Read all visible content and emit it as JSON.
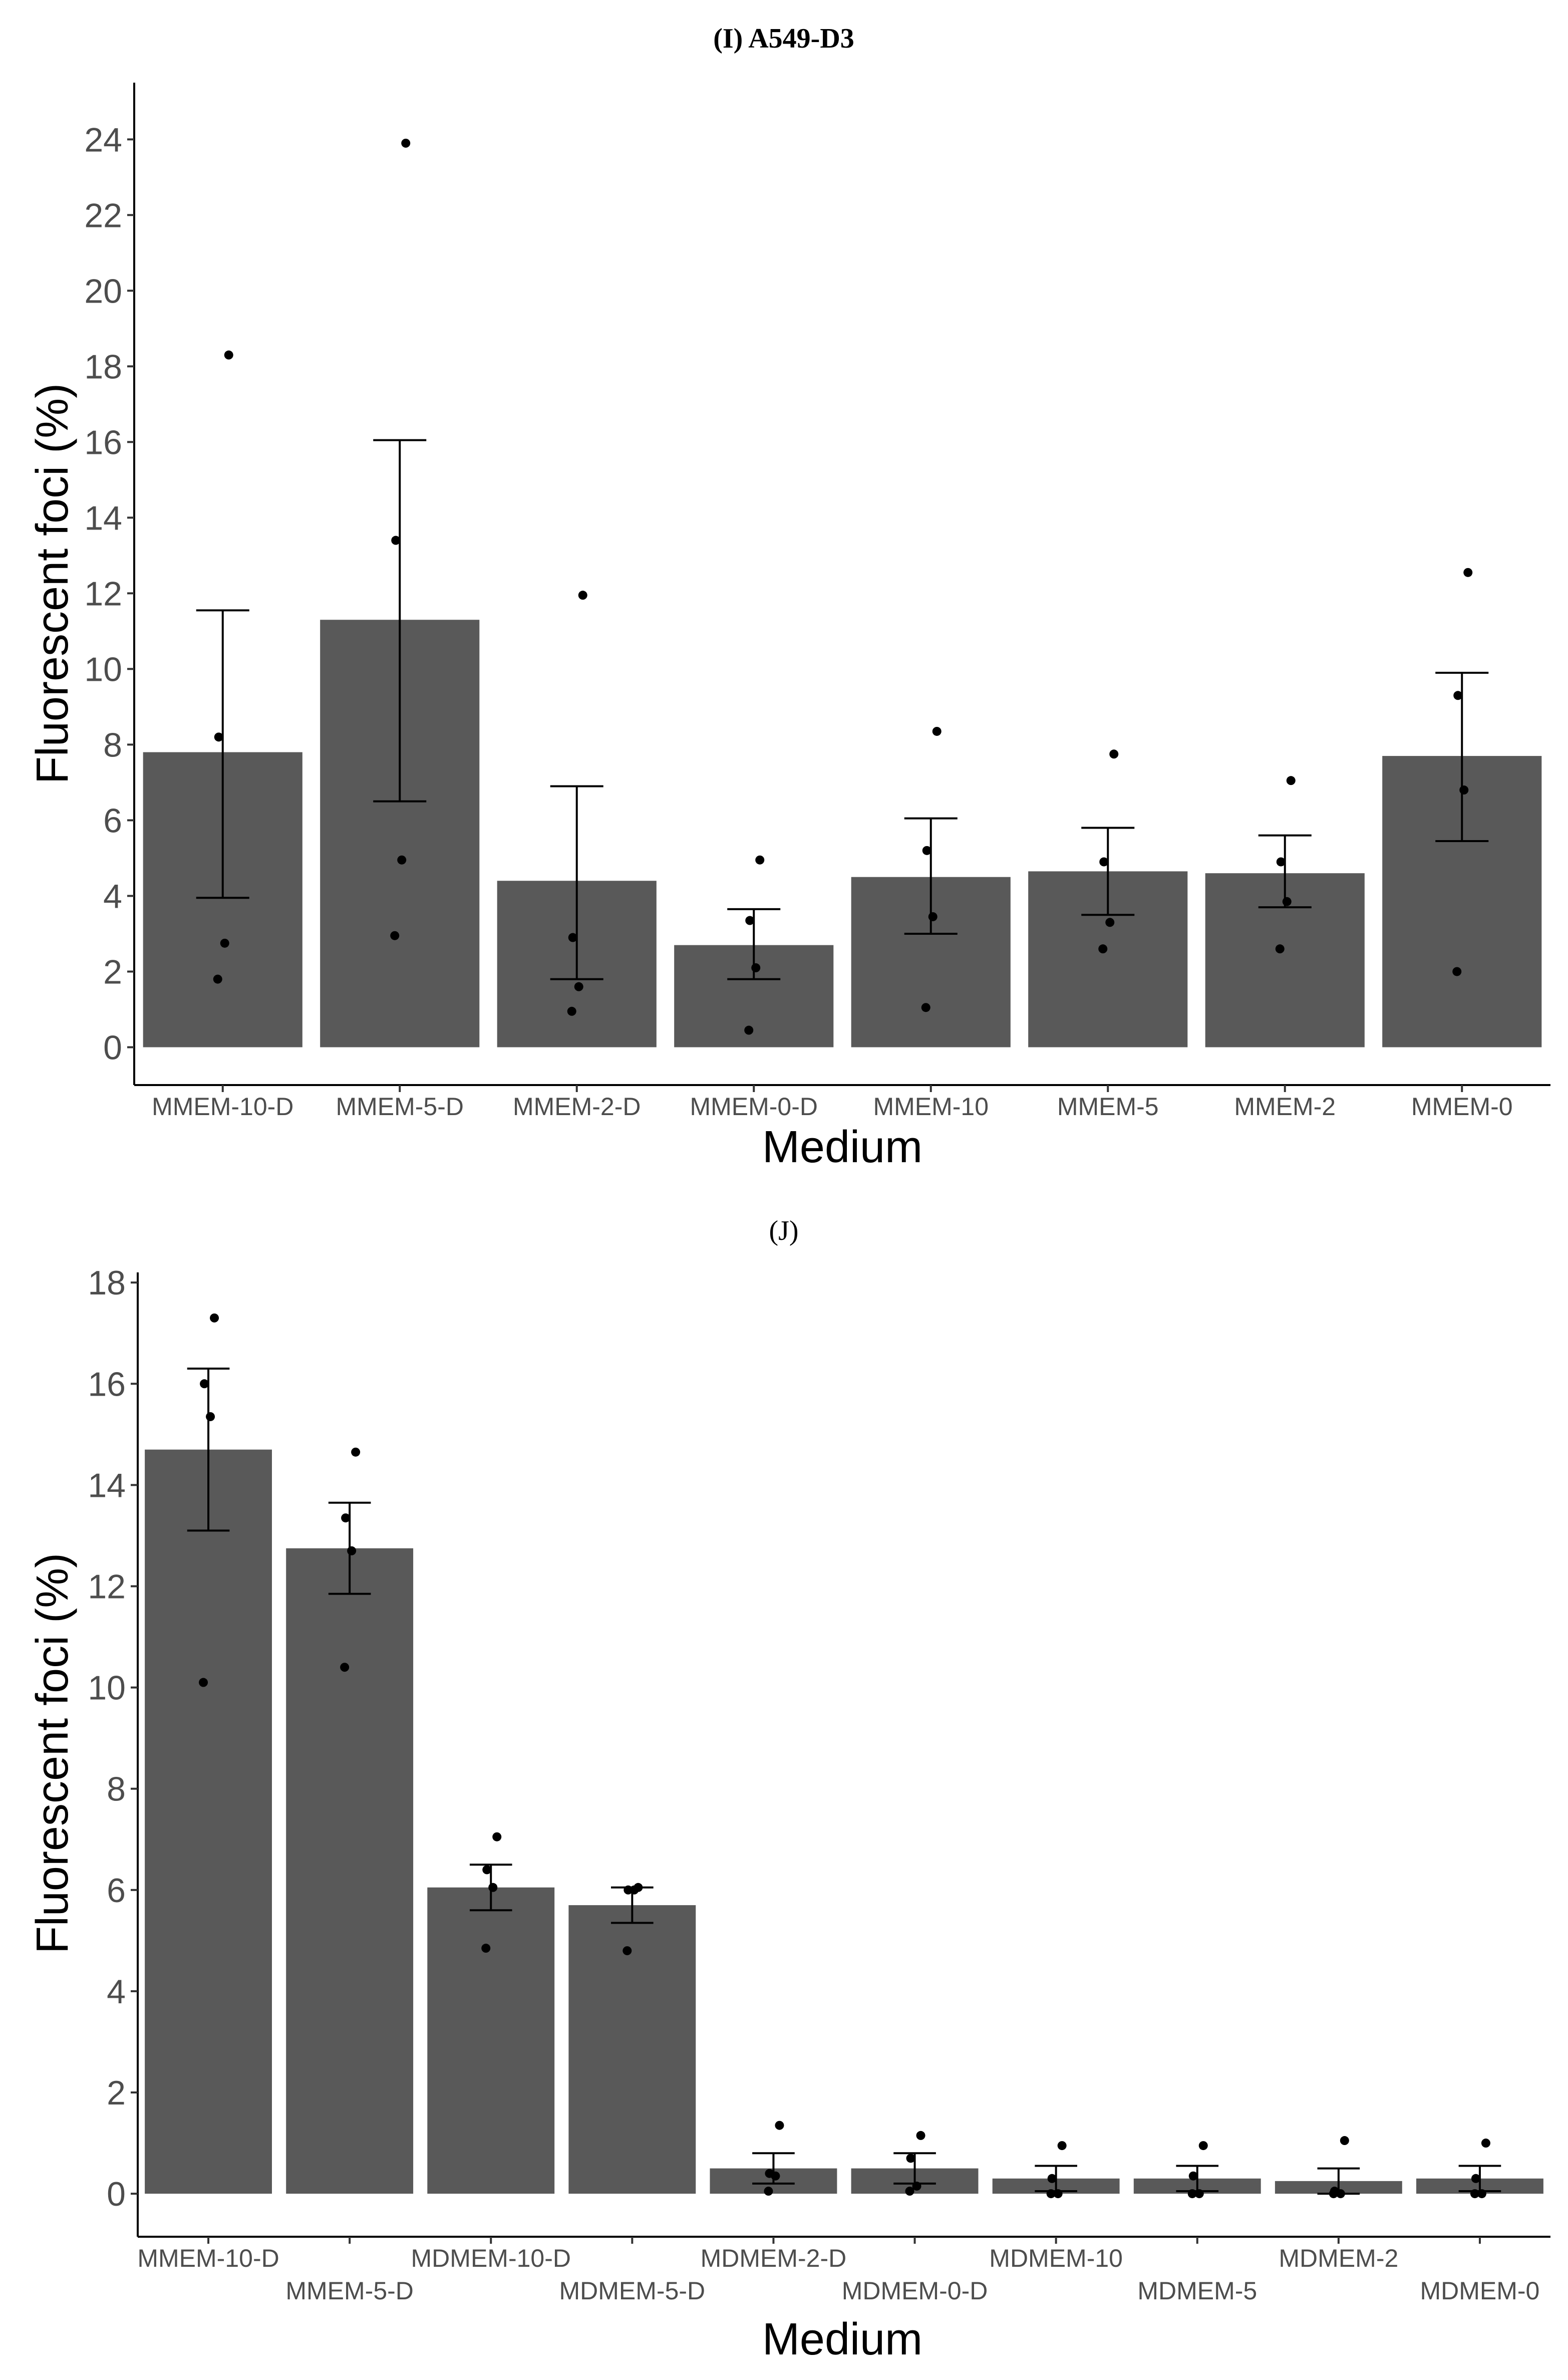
{
  "chart_data": [
    {
      "type": "bar",
      "panel_label": "I",
      "title": "A549-D3",
      "xlabel": "Medium",
      "ylabel": "Fluorescent foci (%)",
      "ylim": [
        -1,
        25.5
      ],
      "yticks": [
        0,
        2,
        4,
        6,
        8,
        10,
        12,
        14,
        16,
        18,
        20,
        22,
        24
      ],
      "categories": [
        "MMEM-10-D",
        "MMEM-5-D",
        "MMEM-2-D",
        "MMEM-0-D",
        "MMEM-10",
        "MMEM-5",
        "MMEM-2",
        "MMEM-0"
      ],
      "values": [
        7.8,
        11.3,
        4.4,
        2.7,
        4.5,
        4.65,
        4.6,
        7.7
      ],
      "error_low": [
        3.95,
        6.5,
        1.8,
        1.8,
        3.0,
        3.5,
        3.7,
        5.45
      ],
      "error_high": [
        11.55,
        16.05,
        6.9,
        3.65,
        6.05,
        5.8,
        5.6,
        9.9
      ],
      "points": [
        [
          18.3,
          8.2,
          2.75,
          1.8
        ],
        [
          23.9,
          13.4,
          4.95,
          2.95
        ],
        [
          11.95,
          2.9,
          1.6,
          0.95
        ],
        [
          4.95,
          3.35,
          2.1,
          0.45
        ],
        [
          8.35,
          5.2,
          3.45,
          1.05
        ],
        [
          7.75,
          4.9,
          3.3,
          2.6
        ],
        [
          7.05,
          4.9,
          3.85,
          2.6
        ],
        [
          12.55,
          9.3,
          6.8,
          2.0
        ]
      ],
      "xlabel_layout": "single"
    },
    {
      "type": "bar",
      "panel_label": "J",
      "title": "",
      "xlabel": "Medium",
      "ylabel": "Fluorescent foci (%)",
      "ylim": [
        -0.85,
        18.2
      ],
      "yticks": [
        0,
        2,
        4,
        6,
        8,
        10,
        12,
        14,
        16,
        18
      ],
      "categories": [
        "MMEM-10-D",
        "MMEM-5-D",
        "MDMEM-10-D",
        "MDMEM-5-D",
        "MDMEM-2-D",
        "MDMEM-0-D",
        "MDMEM-10",
        "MDMEM-5",
        "MDMEM-2",
        "MDMEM-0"
      ],
      "values": [
        14.7,
        12.75,
        6.05,
        5.7,
        0.5,
        0.5,
        0.3,
        0.3,
        0.25,
        0.3
      ],
      "error_low": [
        13.1,
        11.85,
        5.6,
        5.35,
        0.2,
        0.2,
        0.05,
        0.05,
        0.0,
        0.05
      ],
      "error_high": [
        16.3,
        13.65,
        6.5,
        6.05,
        0.8,
        0.8,
        0.55,
        0.55,
        0.5,
        0.55
      ],
      "points": [
        [
          17.3,
          16.0,
          15.35,
          10.1
        ],
        [
          14.65,
          13.35,
          12.7,
          10.4
        ],
        [
          7.05,
          6.4,
          6.05,
          4.85
        ],
        [
          6.05,
          6.0,
          6.0,
          4.8
        ],
        [
          1.35,
          0.4,
          0.35,
          0.05
        ],
        [
          1.15,
          0.7,
          0.15,
          0.05
        ],
        [
          0.95,
          0.3,
          0.0,
          0.0
        ],
        [
          0.95,
          0.35,
          0.0,
          0.0
        ],
        [
          1.05,
          0.05,
          0.0,
          0.0
        ],
        [
          1.0,
          0.3,
          0.0,
          0.0
        ]
      ],
      "xlabel_layout": "staggered"
    }
  ]
}
